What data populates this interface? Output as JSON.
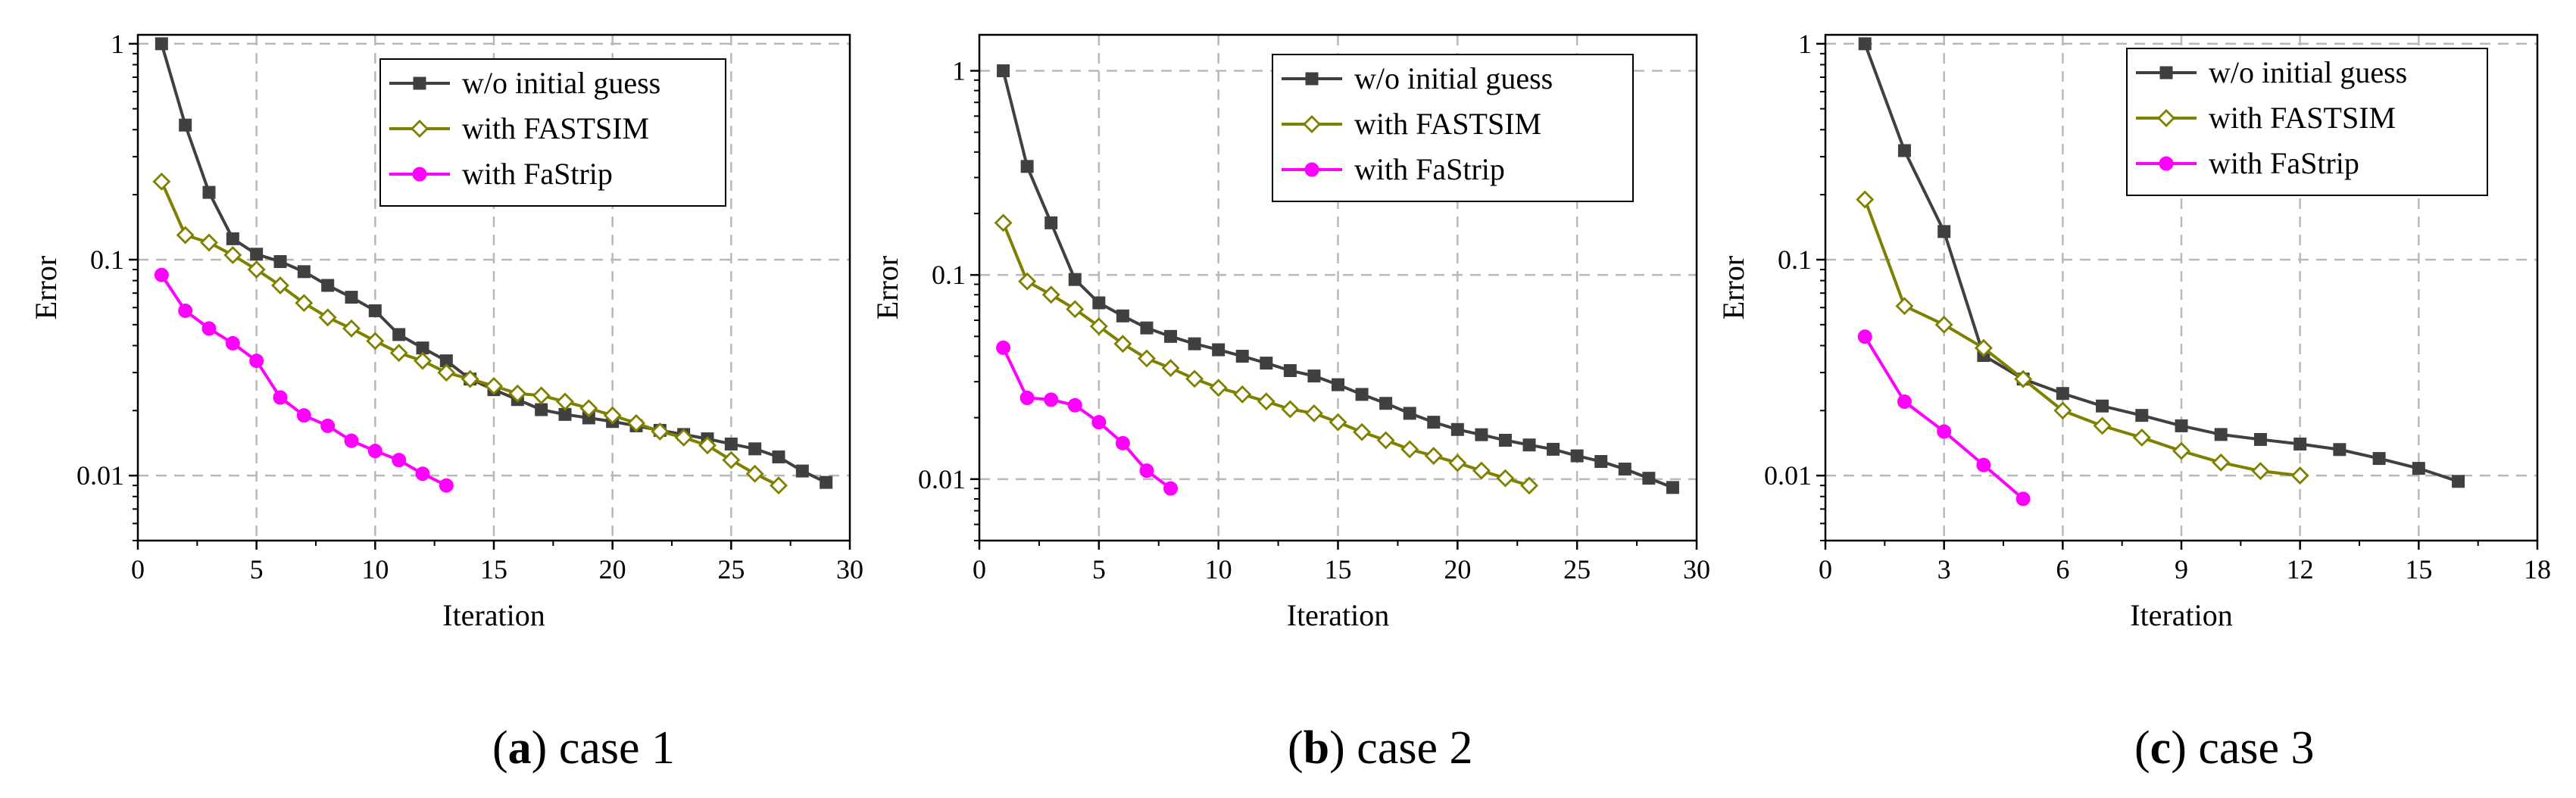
{
  "colors": {
    "wo_initial_guess": "#404040",
    "with_fastsim": "#808000",
    "with_fastrip": "#ff00ff",
    "grid": "#b8b8b8"
  },
  "chart_data": [
    {
      "type": "line",
      "caption_letter": "a",
      "caption_text": "case 1",
      "xlabel": "Iteration",
      "ylabel": "Error",
      "yscale": "log",
      "xlim": [
        0,
        30
      ],
      "ylim": [
        0.005,
        1.1
      ],
      "xticks": [
        0,
        5,
        10,
        15,
        20,
        25,
        30
      ],
      "xtick_labels": [
        "0",
        "5",
        "10",
        "15",
        "20",
        "25",
        "30"
      ],
      "yticks": [
        0.01,
        0.1,
        1
      ],
      "ytick_labels": [
        "0.01",
        "0.1",
        "1"
      ],
      "grid": true,
      "legend_position": "top-right",
      "series": [
        {
          "name": "w/o initial guess",
          "marker": "square",
          "color_key": "wo_initial_guess",
          "x": [
            1,
            2,
            3,
            4,
            5,
            6,
            7,
            8,
            9,
            10,
            11,
            12,
            13,
            14,
            15,
            16,
            17,
            18,
            19,
            20,
            21,
            22,
            23,
            24,
            25,
            26,
            27,
            28,
            29
          ],
          "y": [
            1.0,
            0.42,
            0.205,
            0.125,
            0.106,
            0.098,
            0.088,
            0.076,
            0.067,
            0.058,
            0.045,
            0.039,
            0.034,
            0.028,
            0.025,
            0.0225,
            0.0202,
            0.0192,
            0.0185,
            0.0178,
            0.017,
            0.0162,
            0.0155,
            0.0148,
            0.014,
            0.0133,
            0.0122,
            0.0105,
            0.0093
          ]
        },
        {
          "name": "with FASTSIM",
          "marker": "diamond",
          "color_key": "with_fastsim",
          "x": [
            1,
            2,
            3,
            4,
            5,
            6,
            7,
            8,
            9,
            10,
            11,
            12,
            13,
            14,
            15,
            16,
            17,
            18,
            19,
            20,
            21,
            22,
            23,
            24,
            25,
            26,
            27
          ],
          "y": [
            0.23,
            0.13,
            0.12,
            0.105,
            0.09,
            0.076,
            0.063,
            0.054,
            0.048,
            0.042,
            0.037,
            0.034,
            0.03,
            0.028,
            0.026,
            0.024,
            0.0235,
            0.022,
            0.0205,
            0.019,
            0.0175,
            0.016,
            0.015,
            0.0138,
            0.0118,
            0.0102,
            0.009
          ]
        },
        {
          "name": "with FaStrip",
          "marker": "circle",
          "color_key": "with_fastrip",
          "x": [
            1,
            2,
            3,
            4,
            5,
            6,
            7,
            8,
            9,
            10,
            11,
            12,
            13
          ],
          "y": [
            0.085,
            0.058,
            0.048,
            0.041,
            0.034,
            0.023,
            0.019,
            0.017,
            0.0145,
            0.013,
            0.0118,
            0.0102,
            0.009
          ]
        }
      ]
    },
    {
      "type": "line",
      "caption_letter": "b",
      "caption_text": "case 2",
      "xlabel": "Iteration",
      "ylabel": "Error",
      "yscale": "log",
      "xlim": [
        0,
        30
      ],
      "ylim": [
        0.005,
        1.5
      ],
      "xticks": [
        0,
        5,
        10,
        15,
        20,
        25,
        30
      ],
      "xtick_labels": [
        "0",
        "5",
        "10",
        "15",
        "20",
        "25",
        "30"
      ],
      "yticks": [
        0.01,
        0.1,
        1
      ],
      "ytick_labels": [
        "0.01",
        "0.1",
        "1"
      ],
      "grid": true,
      "legend_position": "top-right",
      "series": [
        {
          "name": "w/o initial guess",
          "marker": "square",
          "color_key": "wo_initial_guess",
          "x": [
            1,
            2,
            3,
            4,
            5,
            6,
            7,
            8,
            9,
            10,
            11,
            12,
            13,
            14,
            15,
            16,
            17,
            18,
            19,
            20,
            21,
            22,
            23,
            24,
            25,
            26,
            27,
            28,
            29
          ],
          "y": [
            1.0,
            0.34,
            0.18,
            0.095,
            0.073,
            0.063,
            0.055,
            0.05,
            0.046,
            0.043,
            0.04,
            0.037,
            0.034,
            0.032,
            0.029,
            0.026,
            0.0235,
            0.021,
            0.019,
            0.0175,
            0.0165,
            0.0155,
            0.0147,
            0.014,
            0.013,
            0.0122,
            0.0112,
            0.0101,
            0.0091
          ]
        },
        {
          "name": "with FASTSIM",
          "marker": "diamond",
          "color_key": "with_fastsim",
          "x": [
            1,
            2,
            3,
            4,
            5,
            6,
            7,
            8,
            9,
            10,
            11,
            12,
            13,
            14,
            15,
            16,
            17,
            18,
            19,
            20,
            21,
            22,
            23
          ],
          "y": [
            0.18,
            0.093,
            0.08,
            0.068,
            0.056,
            0.046,
            0.039,
            0.035,
            0.031,
            0.028,
            0.026,
            0.024,
            0.022,
            0.021,
            0.019,
            0.017,
            0.0155,
            0.014,
            0.013,
            0.012,
            0.011,
            0.0101,
            0.0093
          ]
        },
        {
          "name": "with FaStrip",
          "marker": "circle",
          "color_key": "with_fastrip",
          "x": [
            1,
            2,
            3,
            4,
            5,
            6,
            7,
            8
          ],
          "y": [
            0.044,
            0.025,
            0.0245,
            0.023,
            0.019,
            0.015,
            0.011,
            0.009
          ]
        }
      ]
    },
    {
      "type": "line",
      "caption_letter": "c",
      "caption_text": "case 3",
      "xlabel": "Iteration",
      "ylabel": "Error",
      "yscale": "log",
      "xlim": [
        0,
        18
      ],
      "ylim": [
        0.005,
        1.1
      ],
      "xticks": [
        0,
        3,
        6,
        9,
        12,
        15,
        18
      ],
      "xtick_labels": [
        "0",
        "3",
        "6",
        "9",
        "12",
        "15",
        "18"
      ],
      "yticks": [
        0.01,
        0.1,
        1
      ],
      "ytick_labels": [
        "0.01",
        "0.1",
        "1"
      ],
      "grid": true,
      "legend_position": "top-right",
      "series": [
        {
          "name": "w/o initial guess",
          "marker": "square",
          "color_key": "wo_initial_guess",
          "x": [
            1,
            2,
            3,
            4,
            5,
            6,
            7,
            8,
            9,
            10,
            11,
            12,
            13,
            14,
            15,
            16
          ],
          "y": [
            1.0,
            0.32,
            0.135,
            0.036,
            0.028,
            0.024,
            0.021,
            0.019,
            0.017,
            0.0155,
            0.0147,
            0.014,
            0.0132,
            0.012,
            0.0108,
            0.0094
          ]
        },
        {
          "name": "with FASTSIM",
          "marker": "diamond",
          "color_key": "with_fastsim",
          "x": [
            1,
            2,
            3,
            4,
            5,
            6,
            7,
            8,
            9,
            10,
            11,
            12
          ],
          "y": [
            0.19,
            0.061,
            0.05,
            0.039,
            0.028,
            0.02,
            0.017,
            0.015,
            0.013,
            0.0115,
            0.0105,
            0.01
          ]
        },
        {
          "name": "with FaStrip",
          "marker": "circle",
          "color_key": "with_fastrip",
          "x": [
            1,
            2,
            3,
            4,
            5
          ],
          "y": [
            0.044,
            0.022,
            0.016,
            0.0112,
            0.0078
          ]
        }
      ]
    }
  ]
}
